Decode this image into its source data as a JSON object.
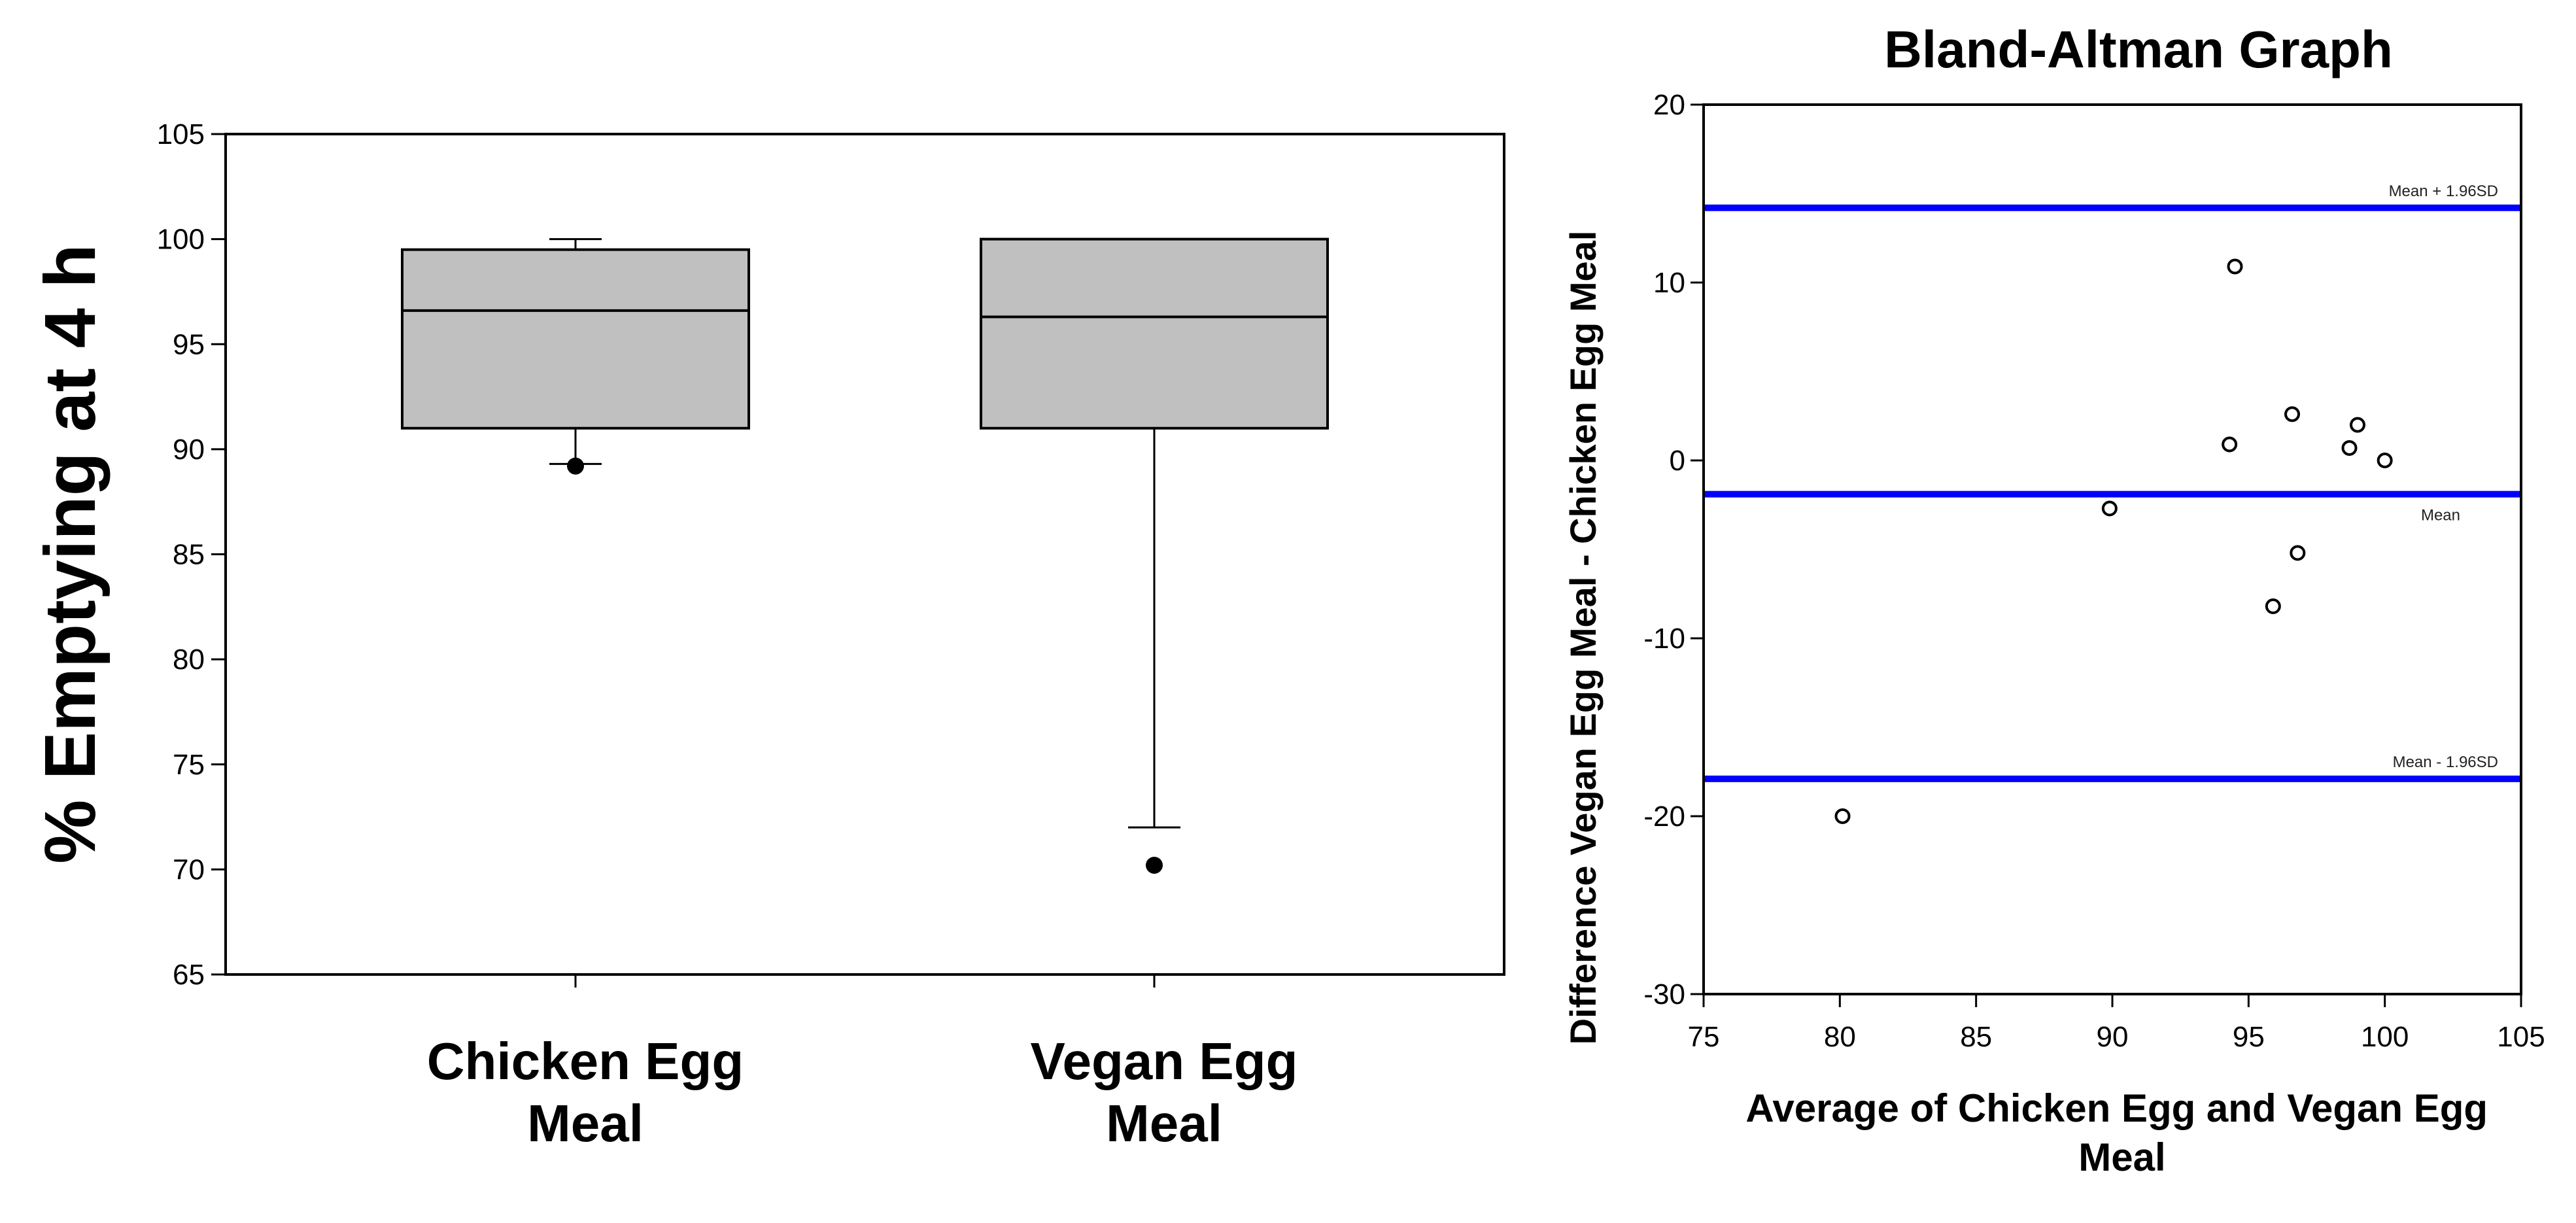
{
  "chart_data": [
    {
      "type": "box",
      "title": "",
      "xlabel": "",
      "ylabel": "% Emptying at 4 h",
      "ylim": [
        65,
        105
      ],
      "yticks": [
        65,
        70,
        75,
        80,
        85,
        90,
        95,
        100,
        105
      ],
      "categories": [
        "Chicken Egg Meal",
        "Vegan Egg Meal"
      ],
      "category_lines": [
        [
          "Chicken Egg",
          "Meal"
        ],
        [
          "Vegan Egg",
          "Meal"
        ]
      ],
      "boxes": [
        {
          "name": "Chicken Egg Meal",
          "whisker_low": 89.3,
          "q1": 91.0,
          "median": 96.6,
          "q3": 99.5,
          "whisker_high": 100.0,
          "outliers": [
            89.2
          ]
        },
        {
          "name": "Vegan Egg Meal",
          "whisker_low": 72.0,
          "q1": 91.0,
          "median": 96.3,
          "q3": 100.0,
          "whisker_high": 100.0,
          "outliers": [
            70.2
          ]
        }
      ],
      "colors": {
        "box_fill": "#c0c0c0",
        "stroke": "#000000"
      }
    },
    {
      "type": "scatter",
      "title": "Bland-Altman Graph",
      "xlabel": "Average of Chicken Egg and Vegan Egg Meal",
      "xlabel_lines": [
        "Average of Chicken Egg and Vegan Egg",
        "Meal"
      ],
      "ylabel": "Difference Vegan Egg Meal - Chicken Egg Meal",
      "xlim": [
        75,
        105
      ],
      "ylim": [
        -30,
        20
      ],
      "xticks": [
        75,
        80,
        85,
        90,
        95,
        100,
        105
      ],
      "yticks": [
        -30,
        -20,
        -10,
        0,
        10,
        20
      ],
      "points": [
        {
          "x": 80.1,
          "y": -20.0
        },
        {
          "x": 89.9,
          "y": -2.7
        },
        {
          "x": 94.3,
          "y": 0.9
        },
        {
          "x": 94.5,
          "y": 10.9
        },
        {
          "x": 95.9,
          "y": -8.2
        },
        {
          "x": 96.6,
          "y": 2.6
        },
        {
          "x": 96.8,
          "y": -5.2
        },
        {
          "x": 98.7,
          "y": 0.7
        },
        {
          "x": 99.0,
          "y": 2.0
        },
        {
          "x": 100.0,
          "y": 0.0
        }
      ],
      "reference_lines": [
        {
          "label": "Mean + 1.96SD",
          "y": 14.2
        },
        {
          "label": "Mean",
          "y": -1.9
        },
        {
          "label": "Mean - 1.96SD",
          "y": -17.9
        }
      ],
      "colors": {
        "reference_line": "#0000ff",
        "point_stroke": "#000000"
      }
    }
  ]
}
